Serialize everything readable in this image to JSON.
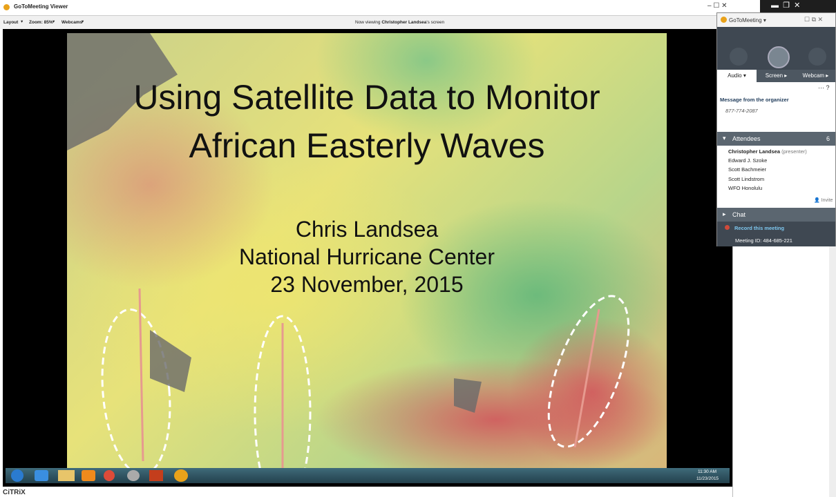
{
  "window": {
    "title": "GoToMeeting Viewer"
  },
  "toolbar": {
    "layout": "Layout",
    "zoom": "Zoom: 85%",
    "webcams": "Webcams",
    "viewing_prefix": "Now viewing",
    "presenter": "Christopher Landsea",
    "viewing_suffix": "'s screen"
  },
  "slide": {
    "title_lines": [
      "Using Satellite Data to Monitor",
      "African Easterly Waves"
    ],
    "author": "Chris Landsea",
    "organization": "National Hurricane Center",
    "date": "23 November, 2015"
  },
  "taskbar": {
    "time": "11:30 AM",
    "date": "11/23/2015"
  },
  "footer": {
    "brand": "CiTRiX"
  },
  "panel": {
    "app_menu": "GoToMeeting",
    "tabs": [
      "Audio",
      "Screen",
      "Webcam"
    ],
    "message_title": "Message from the organizer",
    "message": "877-774-2087",
    "attendees_title": "Attendees",
    "attendees_count": "6",
    "attendees": [
      {
        "name": "Christopher Landsea",
        "role": "(presenter)"
      },
      {
        "name": "Edward J. Szoke"
      },
      {
        "name": "Scott Bachmeier"
      },
      {
        "name": "Scott Lindstrom"
      },
      {
        "name": "WFO Honolulu"
      }
    ],
    "invite": "Invite",
    "chat_title": "Chat",
    "record": "Record this meeting",
    "meeting_id": "Meeting ID: 484-685-221"
  }
}
